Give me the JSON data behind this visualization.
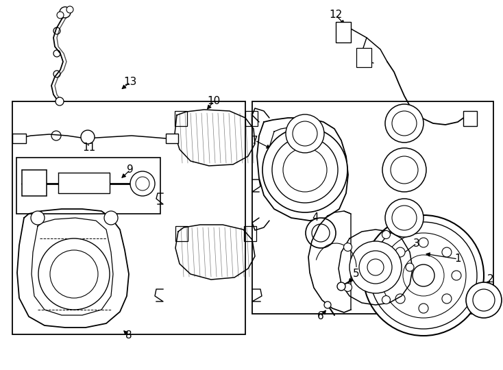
{
  "background_color": "#ffffff",
  "figure_width": 7.34,
  "figure_height": 5.4,
  "dpi": 100,
  "image_b64": ""
}
